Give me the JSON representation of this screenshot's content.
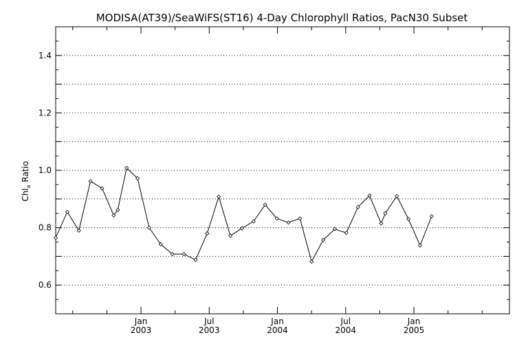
{
  "chart_data": {
    "type": "line",
    "title": "MODISA(AT39)/SeaWiFS(ST16) 4-Day Chlorophyll Ratios, PacN30 Subset",
    "ylabel_main": "Chl",
    "ylabel_sub": "a",
    "ylabel_tail": " Ratio",
    "ylim": [
      0.5,
      1.5
    ],
    "xlim": [
      2002.375,
      2005.7
    ],
    "y_major_ticks": [
      {
        "value": 0.6,
        "label": "0.6"
      },
      {
        "value": 0.8,
        "label": "0.8"
      },
      {
        "value": 1.0,
        "label": "1.0"
      },
      {
        "value": 1.2,
        "label": "1.2"
      },
      {
        "value": 1.4,
        "label": "1.4"
      }
    ],
    "y_grid": [
      0.6,
      0.7,
      0.8,
      0.9,
      1.0,
      1.1,
      1.2,
      1.3,
      1.4
    ],
    "x_ticks": [
      {
        "value": 2003.0,
        "month": "Jan",
        "year": "2003"
      },
      {
        "value": 2003.5,
        "month": "Jul",
        "year": "2003"
      },
      {
        "value": 2004.0,
        "month": "Jan",
        "year": "2004"
      },
      {
        "value": 2004.5,
        "month": "Jul",
        "year": "2004"
      },
      {
        "value": 2005.0,
        "month": "Jan",
        "year": "2005"
      }
    ],
    "x_minor_ticks": [
      2002.5,
      2002.75,
      2003.25,
      2003.75,
      2004.25,
      2004.75,
      2005.25,
      2005.5
    ],
    "grid": true,
    "series": [
      {
        "points": [
          {
            "x": 2002.375,
            "y": 0.765
          },
          {
            "x": 2002.46,
            "y": 0.855
          },
          {
            "x": 2002.545,
            "y": 0.79
          },
          {
            "x": 2002.63,
            "y": 0.962
          },
          {
            "x": 2002.715,
            "y": 0.937
          },
          {
            "x": 2002.8,
            "y": 0.843
          },
          {
            "x": 2002.83,
            "y": 0.862
          },
          {
            "x": 2002.895,
            "y": 1.008
          },
          {
            "x": 2002.975,
            "y": 0.972
          },
          {
            "x": 2003.06,
            "y": 0.8
          },
          {
            "x": 2003.145,
            "y": 0.742
          },
          {
            "x": 2003.23,
            "y": 0.708
          },
          {
            "x": 2003.315,
            "y": 0.708
          },
          {
            "x": 2003.4,
            "y": 0.688
          },
          {
            "x": 2003.485,
            "y": 0.78
          },
          {
            "x": 2003.57,
            "y": 0.908
          },
          {
            "x": 2003.655,
            "y": 0.772
          },
          {
            "x": 2003.74,
            "y": 0.798
          },
          {
            "x": 2003.825,
            "y": 0.822
          },
          {
            "x": 2003.91,
            "y": 0.88
          },
          {
            "x": 2003.995,
            "y": 0.832
          },
          {
            "x": 2004.08,
            "y": 0.818
          },
          {
            "x": 2004.165,
            "y": 0.832
          },
          {
            "x": 2004.25,
            "y": 0.682
          },
          {
            "x": 2004.335,
            "y": 0.757
          },
          {
            "x": 2004.42,
            "y": 0.795
          },
          {
            "x": 2004.505,
            "y": 0.782
          },
          {
            "x": 2004.59,
            "y": 0.872
          },
          {
            "x": 2004.675,
            "y": 0.912
          },
          {
            "x": 2004.76,
            "y": 0.815
          },
          {
            "x": 2004.79,
            "y": 0.85
          },
          {
            "x": 2004.875,
            "y": 0.91
          },
          {
            "x": 2004.96,
            "y": 0.83
          },
          {
            "x": 2005.045,
            "y": 0.738
          },
          {
            "x": 2005.13,
            "y": 0.84
          }
        ]
      }
    ]
  }
}
